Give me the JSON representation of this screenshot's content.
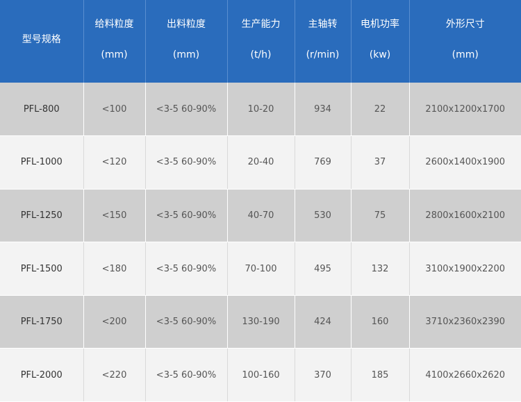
{
  "table": {
    "headers": [
      {
        "name": "型号规格",
        "unit": ""
      },
      {
        "name": "给料粒度",
        "unit": "(mm)"
      },
      {
        "name": "出料粒度",
        "unit": "(mm)"
      },
      {
        "name": "生产能力",
        "unit": "(t/h)"
      },
      {
        "name": "主轴转",
        "unit": "(r/min)"
      },
      {
        "name": "电机功率",
        "unit": "(kw)"
      },
      {
        "name": "外形尺寸",
        "unit": "(mm)"
      }
    ],
    "rows": [
      [
        "PFL-800",
        "<100",
        "<3-5 60-90%",
        "10-20",
        "934",
        "22",
        "2100x1200x1700"
      ],
      [
        "PFL-1000",
        "<120",
        "<3-5 60-90%",
        "20-40",
        "769",
        "37",
        "2600x1400x1900"
      ],
      [
        "PFL-1250",
        "<150",
        "<3-5 60-90%",
        "40-70",
        "530",
        "75",
        "2800x1600x2100"
      ],
      [
        "PFL-1500",
        "<180",
        "<3-5 60-90%",
        "70-100",
        "495",
        "132",
        "3100x1900x2200"
      ],
      [
        "PFL-1750",
        "<200",
        "<3-5 60-90%",
        "130-190",
        "424",
        "160",
        "3710x2360x2390"
      ],
      [
        "PFL-2000",
        "<220",
        "<3-5 60-90%",
        "100-160",
        "370",
        "185",
        "4100x2660x2620"
      ]
    ]
  },
  "colors": {
    "header_bg": "#2a6cbc",
    "row_dark": "#cfcfcf",
    "row_light": "#f3f3f3"
  }
}
